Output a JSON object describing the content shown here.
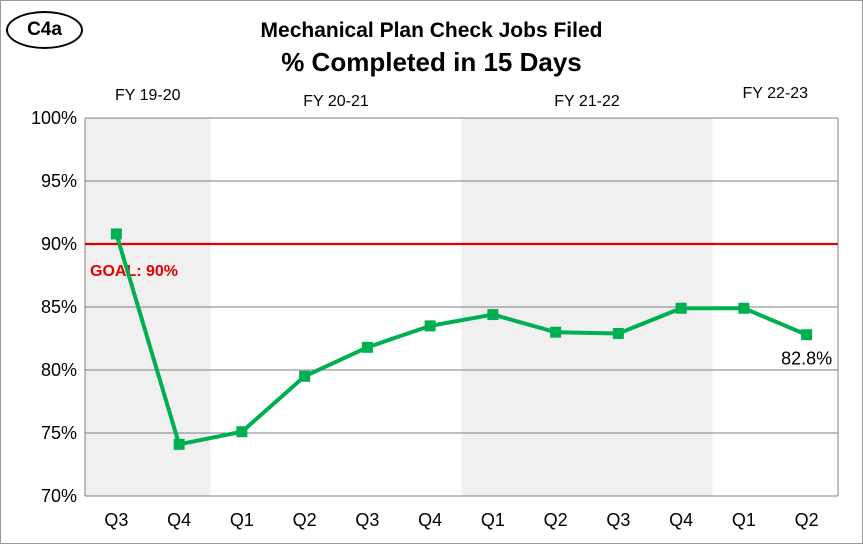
{
  "badge": "C4a",
  "chart_data": {
    "type": "line",
    "title": "Mechanical Plan Check Jobs Filed",
    "subtitle": "% Completed in 15 Days",
    "categories": [
      "Q3",
      "Q4",
      "Q1",
      "Q2",
      "Q3",
      "Q4",
      "Q1",
      "Q2",
      "Q3",
      "Q4",
      "Q1",
      "Q2"
    ],
    "series": [
      {
        "values": [
          90.8,
          74.1,
          75.1,
          79.5,
          81.8,
          83.5,
          84.4,
          83.0,
          82.9,
          84.9,
          84.9,
          82.8
        ],
        "color": "#00b050"
      }
    ],
    "ylim": [
      70,
      100
    ],
    "yticks": [
      70,
      75,
      80,
      85,
      90,
      95,
      100
    ],
    "ytick_labels": [
      "70%",
      "75%",
      "80%",
      "85%",
      "90%",
      "95%",
      "100%"
    ],
    "goal": {
      "value": 90,
      "label": "GOAL: 90%",
      "color": "#e00000"
    },
    "fiscal_years": [
      {
        "label": "FY 19-20",
        "span": [
          0,
          1
        ],
        "shaded": true
      },
      {
        "label": "FY 20-21",
        "span": [
          2,
          5
        ],
        "shaded": false
      },
      {
        "label": "FY 21-22",
        "span": [
          6,
          9
        ],
        "shaded": true
      },
      {
        "label": "FY 22-23",
        "span": [
          10,
          11
        ],
        "shaded": false
      }
    ],
    "shade_color": "#f0f0f0",
    "last_point_label": "82.8%",
    "grid": true
  }
}
